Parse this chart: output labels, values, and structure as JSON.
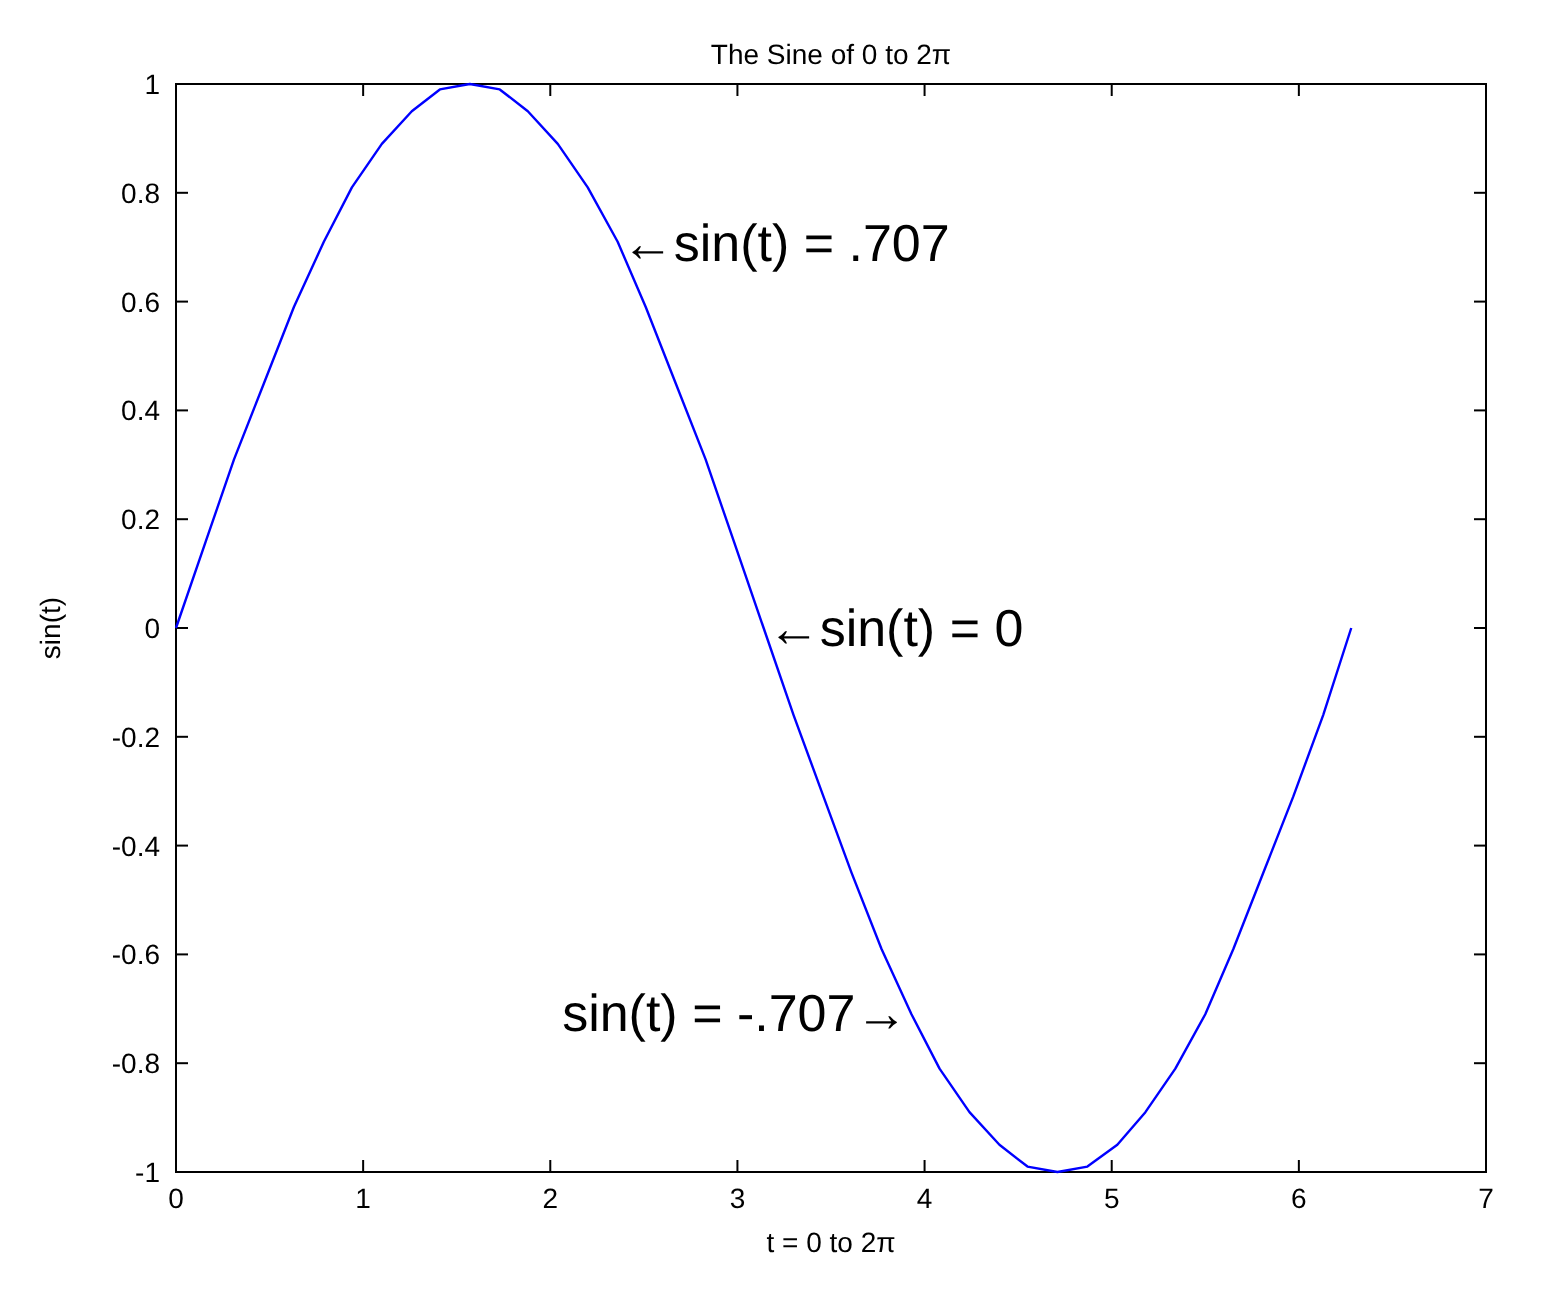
{
  "chart_data": {
    "type": "line",
    "title": "The Sine of 0 to 2π",
    "xlabel": "t = 0 to 2π",
    "ylabel": "sin(t)",
    "x": [
      0,
      0.16,
      0.31,
      0.47,
      0.63,
      0.79,
      0.94,
      1.1,
      1.26,
      1.41,
      1.57,
      1.73,
      1.88,
      2.04,
      2.2,
      2.36,
      2.51,
      2.67,
      2.83,
      2.98,
      3.14,
      3.3,
      3.46,
      3.61,
      3.77,
      3.93,
      4.08,
      4.24,
      4.4,
      4.55,
      4.71,
      4.87,
      5.03,
      5.18,
      5.34,
      5.5,
      5.65,
      5.81,
      5.97,
      6.13,
      6.28
    ],
    "series": [
      {
        "color": "#0000ff",
        "values": [
          0,
          0.16,
          0.31,
          0.45,
          0.59,
          0.71,
          0.81,
          0.89,
          0.95,
          0.99,
          1,
          0.99,
          0.95,
          0.89,
          0.81,
          0.71,
          0.59,
          0.45,
          0.31,
          0.16,
          0,
          -0.16,
          -0.31,
          -0.45,
          -0.59,
          -0.71,
          -0.81,
          -0.89,
          -0.95,
          -0.99,
          -1,
          -0.99,
          -0.95,
          -0.89,
          -0.81,
          -0.71,
          -0.59,
          -0.45,
          -0.31,
          -0.16,
          0
        ]
      }
    ],
    "xlim": [
      0,
      7
    ],
    "xticks": [
      0,
      1,
      2,
      3,
      4,
      5,
      6,
      7
    ],
    "ylim": [
      -1,
      1
    ],
    "yticks": [
      -1,
      -0.8,
      -0.6,
      -0.4,
      -0.2,
      0,
      0.2,
      0.4,
      0.6,
      0.8,
      1
    ],
    "annotations": [
      {
        "text": "←sin(t) = .707",
        "x": 2.36,
        "y": 0.707
      },
      {
        "text": "←sin(t) = 0",
        "x": 3.14,
        "y": 0
      },
      {
        "text": "sin(t) = -.707→",
        "x": 3.93,
        "y": -0.707
      }
    ],
    "grid": false,
    "marker": "none",
    "line_style": "solid"
  }
}
